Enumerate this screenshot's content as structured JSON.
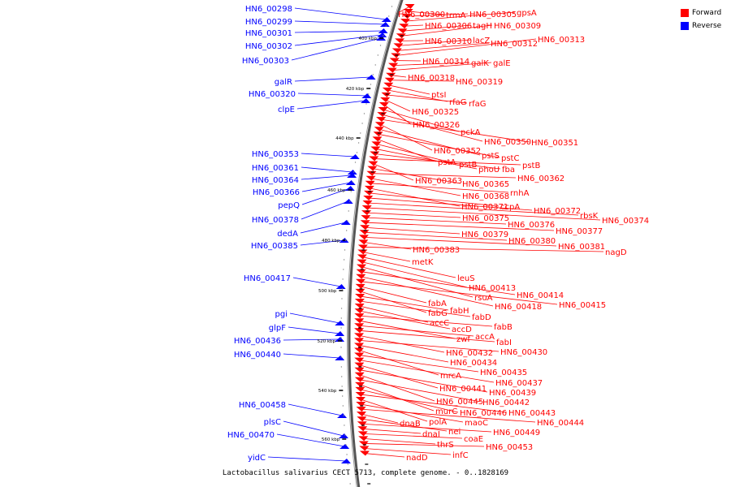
{
  "legend": {
    "forward_label": "Forward",
    "forward_color": "#ff0000",
    "reverse_label": "Reverse",
    "reverse_color": "#0000ff"
  },
  "caption": "Lactobacillus salivarius CECT 5713, complete genome. - 0..1828169",
  "ticks": [
    "400 kbp",
    "420 kbp",
    "440 kbp",
    "460 kbp",
    "480 kbp",
    "500 kbp",
    "520 kbp",
    "540 kbp",
    "560 kbp"
  ],
  "reverse_genes": [
    "HN6_00298",
    "HN6_00299",
    "HN6_00301",
    "HN6_00302",
    "HN6_00303",
    "galR",
    "HN6_00320",
    "clpE",
    "HN6_00353",
    "HN6_00361",
    "HN6_00364",
    "HN6_00366",
    "pepQ",
    "HN6_00378",
    "dedA",
    "HN6_00385",
    "HN6_00417",
    "pgi",
    "glpF",
    "HN6_00436",
    "HN6_00440",
    "HN6_00458",
    "plsC",
    "HN6_00470",
    "yidC"
  ],
  "forward_genes": [
    "HN6_00300",
    "trmA",
    "HN6_00305",
    "gpsA",
    "HN6_00306",
    "tagH",
    "HN6_00309",
    "HN6_00310",
    "lacZ",
    "HN6_00312",
    "HN6_00313",
    "HN6_00314",
    "galK",
    "galE",
    "HN6_00318",
    "HN6_00319",
    "ptsI",
    "rfaG",
    "rfaG",
    "HN6_00325",
    "HN6_00326",
    "pckA",
    "HN6_00350",
    "HN6_00351",
    "HN6_00352",
    "pstS",
    "pstC",
    "pstA",
    "pstB",
    "phoU",
    "fba",
    "pstB",
    "HN6_00363",
    "HN6_00365",
    "HN6_00362",
    "HN6_00368",
    "rnhA",
    "HN6_00371",
    "ccpA",
    "HN6_00372",
    "rbsK",
    "HN6_00374",
    "HN6_00375",
    "HN6_00376",
    "HN6_00377",
    "HN6_00379",
    "HN6_00380",
    "HN6_00381",
    "HN6_00383",
    "nagD",
    "metK",
    "leuS",
    "HN6_00413",
    "rsuA",
    "HN6_00414",
    "HN6_00418",
    "HN6_00415",
    "fabA",
    "fabG",
    "fabH",
    "fabD",
    "accC",
    "accD",
    "fabB",
    "zwf",
    "accA",
    "fabI",
    "HN6_00432",
    "HN6_00430",
    "HN6_00434",
    "mrcA",
    "HN6_00435",
    "HN6_00437",
    "HN6_00441",
    "HN6_00439",
    "HN6_00445",
    "HN6_00442",
    "murC",
    "HN6_00446",
    "HN6_00443",
    "polA",
    "maoC",
    "HN6_00444",
    "dnaB",
    "nei",
    "HN6_00449",
    "dnaI",
    "coaE",
    "thrS",
    "HN6_00453",
    "infC",
    "nadD"
  ]
}
